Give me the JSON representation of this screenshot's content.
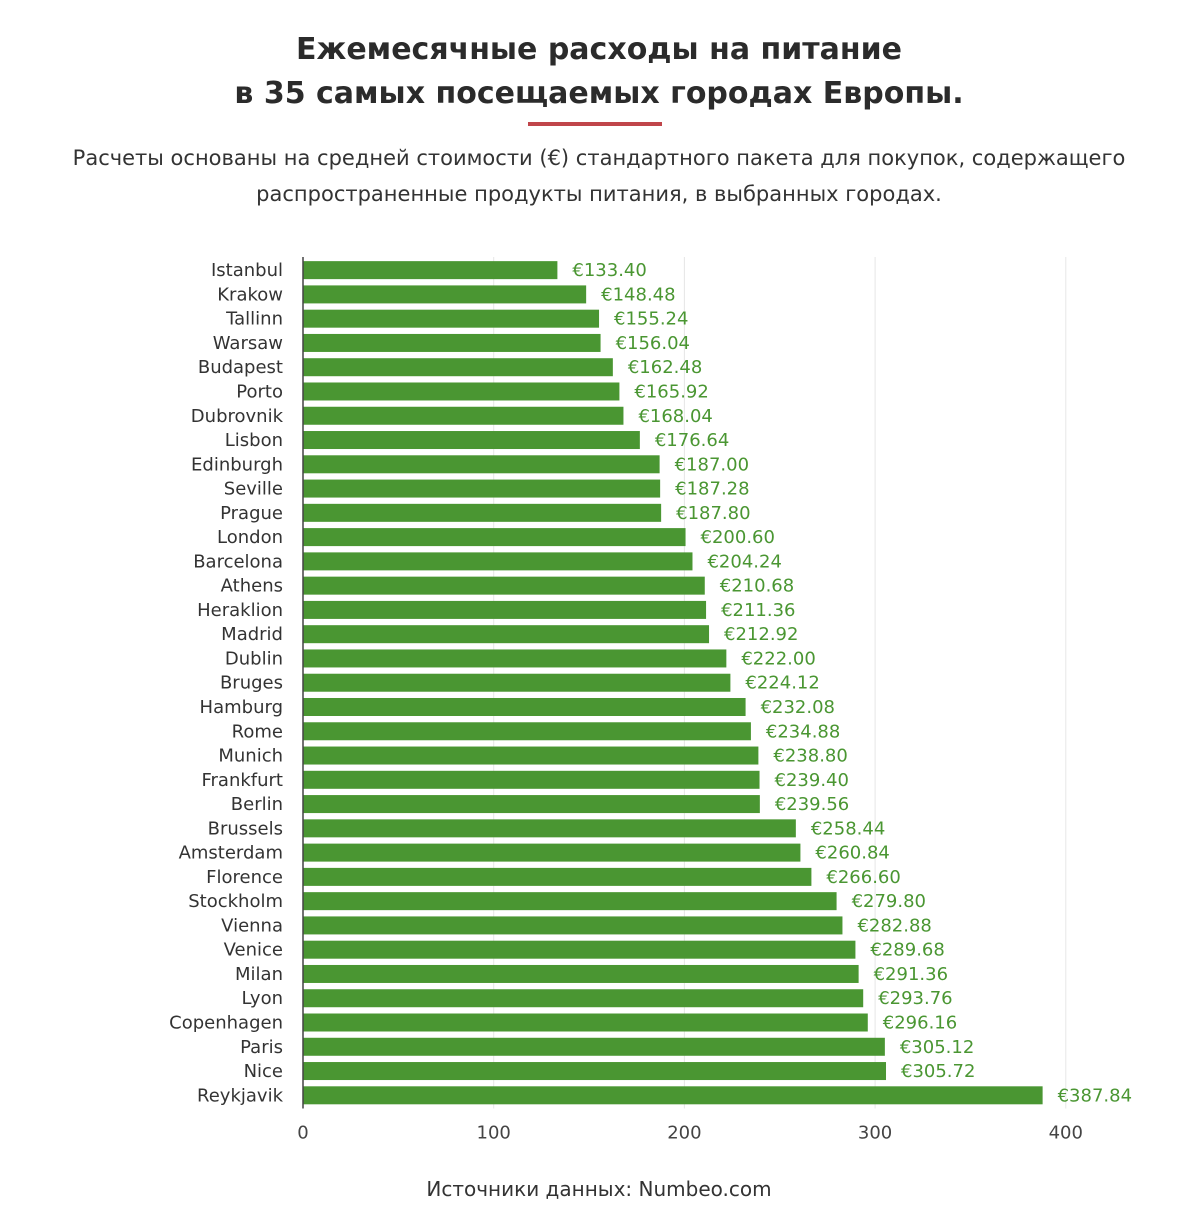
{
  "header": {
    "title_line1": "Ежемесячные расходы на питание",
    "title_line2": "в 35 самых посещаемых городах Европы.",
    "subtitle_line1": "Расчеты основаны на средней стоимости (€) стандартного пакета для покупок, содержащего",
    "subtitle_line2": "распространенные продукты питания, в выбранных городах."
  },
  "footer": {
    "source": "Источники данных: Numbeo.com"
  },
  "colors": {
    "bar": "#4a9632",
    "value_label": "#4a9632",
    "grid": "#e6e6e6",
    "axis": "#444444",
    "accent_underline": "#c0454a"
  },
  "chart_data": {
    "type": "bar",
    "orientation": "horizontal",
    "categories": [
      "Istanbul",
      "Krakow",
      "Tallinn",
      "Warsaw",
      "Budapest",
      "Porto",
      "Dubrovnik",
      "Lisbon",
      "Edinburgh",
      "Seville",
      "Prague",
      "London",
      "Barcelona",
      "Athens",
      "Heraklion",
      "Madrid",
      "Dublin",
      "Bruges",
      "Hamburg",
      "Rome",
      "Munich",
      "Frankfurt",
      "Berlin",
      "Brussels",
      "Amsterdam",
      "Florence",
      "Stockholm",
      "Vienna",
      "Venice",
      "Milan",
      "Lyon",
      "Copenhagen",
      "Paris",
      "Nice",
      "Reykjavik"
    ],
    "values": [
      133.4,
      148.48,
      155.24,
      156.04,
      162.48,
      165.92,
      168.04,
      176.64,
      187.0,
      187.28,
      187.8,
      200.6,
      204.24,
      210.68,
      211.36,
      212.92,
      222.0,
      224.12,
      232.08,
      234.88,
      238.8,
      239.4,
      239.56,
      258.44,
      260.84,
      266.6,
      279.8,
      282.88,
      289.68,
      291.36,
      293.76,
      296.16,
      305.12,
      305.72,
      387.84
    ],
    "value_labels": [
      "€133.40",
      "€148.48",
      "€155.24",
      "€156.04",
      "€162.48",
      "€165.92",
      "€168.04",
      "€176.64",
      "€187.00",
      "€187.28",
      "€187.80",
      "€200.60",
      "€204.24",
      "€210.68",
      "€211.36",
      "€212.92",
      "€222.00",
      "€224.12",
      "€232.08",
      "€234.88",
      "€238.80",
      "€239.40",
      "€239.56",
      "€258.44",
      "€260.84",
      "€266.60",
      "€279.80",
      "€282.88",
      "€289.68",
      "€291.36",
      "€293.76",
      "€296.16",
      "€305.12",
      "€305.72",
      "€387.84"
    ],
    "x_ticks": [
      "0",
      "100",
      "200",
      "300",
      "400"
    ],
    "xlim": [
      0,
      430
    ],
    "grid": true,
    "legend": "none"
  }
}
